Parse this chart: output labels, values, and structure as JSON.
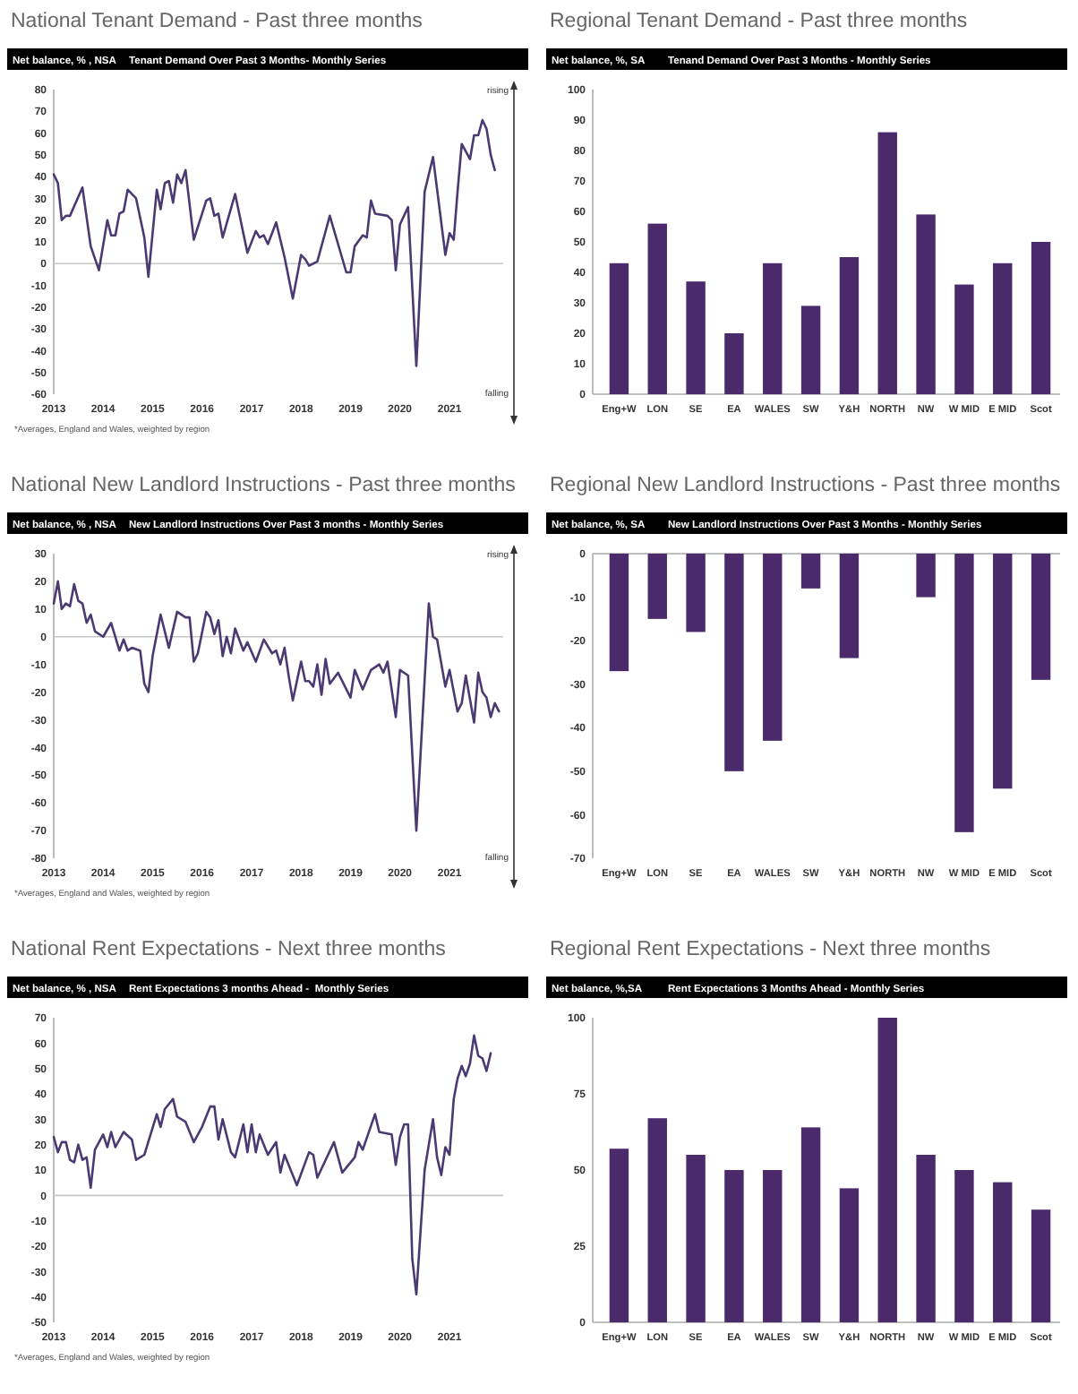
{
  "chart_data": [
    {
      "type": "line",
      "title": "National Tenant Demand - Past three months",
      "subtitle": "Tenant Demand Over Past 3 Months- Monthly Series",
      "ylabel": "Net balance, % , NSA",
      "color": "#4b3a72",
      "x": [
        "2013-01",
        "2013-02",
        "2013-03",
        "2013-04",
        "2013-05",
        "2013-08",
        "2013-10",
        "2013-12",
        "2014-02",
        "2014-03",
        "2014-04",
        "2014-05",
        "2014-06",
        "2014-07",
        "2014-09",
        "2014-11",
        "2014-12",
        "2015-02",
        "2015-03",
        "2015-04",
        "2015-05",
        "2015-06",
        "2015-07",
        "2015-08",
        "2015-09",
        "2015-11",
        "2016-02",
        "2016-03",
        "2016-04",
        "2016-05",
        "2016-06",
        "2016-09",
        "2016-12",
        "2017-02",
        "2017-03",
        "2017-04",
        "2017-05",
        "2017-06",
        "2017-07",
        "2017-09",
        "2017-11",
        "2018-01",
        "2018-02",
        "2018-03",
        "2018-05",
        "2018-08",
        "2018-12",
        "2019-01",
        "2019-02",
        "2019-04",
        "2019-05",
        "2019-06",
        "2019-07",
        "2019-10",
        "2019-11",
        "2019-12",
        "2020-01",
        "2020-03",
        "2020-05",
        "2020-07",
        "2020-09",
        "2020-12",
        "2021-01",
        "2021-02",
        "2021-03",
        "2021-04",
        "2021-06",
        "2021-07",
        "2021-08",
        "2021-09",
        "2021-10",
        "2021-11",
        "2021-12"
      ],
      "values": [
        41,
        37,
        20,
        22,
        22,
        35,
        8,
        -3,
        20,
        13,
        13,
        23,
        24,
        34,
        30,
        12,
        -6,
        34,
        25,
        37,
        38,
        28,
        41,
        37,
        43,
        11,
        29,
        30,
        22,
        23,
        12,
        32,
        5,
        15,
        12,
        13,
        9,
        14,
        19,
        3,
        -16,
        4,
        2,
        -1,
        1,
        22,
        -4,
        -4,
        8,
        13,
        12,
        29,
        23,
        22,
        20,
        -3,
        18,
        26,
        -47,
        33,
        49,
        4,
        14,
        11,
        33,
        55,
        48,
        59,
        59,
        66,
        62,
        50,
        43
      ],
      "xlim": [
        "2013-01",
        "2022-02"
      ],
      "xticks": [
        "2013",
        "2014",
        "2015",
        "2016",
        "2017",
        "2018",
        "2019",
        "2020",
        "2021"
      ],
      "ylim": [
        -60,
        80
      ],
      "yticks": [
        -60,
        -50,
        -40,
        -30,
        -20,
        -10,
        0,
        10,
        20,
        30,
        40,
        50,
        60,
        70,
        80
      ],
      "ref_lines": [
        {
          "axis": "y",
          "value": 0,
          "color": "#c8c8c8"
        }
      ],
      "annotations": [
        "*Averages, England and Wales, weighted by region",
        "rising",
        "falling"
      ]
    },
    {
      "type": "bar",
      "title": "Regional Tenant Demand - Past three months",
      "subtitle": "Tenand Demand Over Past 3 Months - Monthly Series",
      "ylabel": "Net balance, %, SA",
      "color": "#4a2a6a",
      "categories": [
        "Eng+W",
        "LON",
        "SE",
        "EA",
        "WALES",
        "SW",
        "Y&H",
        "NORTH",
        "NW",
        "W MID",
        "E MID",
        "Scot"
      ],
      "values": [
        43,
        56,
        37,
        20,
        43,
        29,
        45,
        86,
        59,
        36,
        43,
        50
      ],
      "ylim": [
        0,
        100
      ],
      "yticks": [
        0,
        10,
        20,
        30,
        40,
        50,
        60,
        70,
        80,
        90,
        100
      ]
    },
    {
      "type": "line",
      "title": "National New Landlord Instructions - Past three months",
      "subtitle": "New Landlord Instructions Over Past 3 months - Monthly Series",
      "ylabel": "Net balance, % , NSA",
      "color": "#4b3a72",
      "x": [
        "2013-01",
        "2013-02",
        "2013-03",
        "2013-04",
        "2013-05",
        "2013-06",
        "2013-07",
        "2013-08",
        "2013-09",
        "2013-10",
        "2013-11",
        "2014-01",
        "2014-03",
        "2014-05",
        "2014-06",
        "2014-07",
        "2014-08",
        "2014-10",
        "2014-11",
        "2014-12",
        "2015-01",
        "2015-03",
        "2015-05",
        "2015-07",
        "2015-09",
        "2015-10",
        "2015-11",
        "2015-12",
        "2016-02",
        "2016-03",
        "2016-04",
        "2016-05",
        "2016-06",
        "2016-07",
        "2016-08",
        "2016-09",
        "2016-11",
        "2016-12",
        "2017-02",
        "2017-04",
        "2017-06",
        "2017-07",
        "2017-08",
        "2017-09",
        "2017-10",
        "2017-11",
        "2018-01",
        "2018-02",
        "2018-03",
        "2018-04",
        "2018-05",
        "2018-06",
        "2018-07",
        "2018-08",
        "2018-10",
        "2019-01",
        "2019-02",
        "2019-04",
        "2019-06",
        "2019-08",
        "2019-09",
        "2019-10",
        "2019-12",
        "2020-01",
        "2020-03",
        "2020-05",
        "2020-08",
        "2020-09",
        "2020-10",
        "2020-12",
        "2021-01",
        "2021-03",
        "2021-04",
        "2021-05",
        "2021-07",
        "2021-08",
        "2021-09",
        "2021-10",
        "2021-11",
        "2021-12",
        "2022-01"
      ],
      "values": [
        12,
        20,
        10,
        12,
        11,
        19,
        13,
        12,
        5,
        8,
        2,
        0,
        5,
        -5,
        -1,
        -5,
        -4,
        -5,
        -17,
        -20,
        -7,
        8,
        -4,
        9,
        7,
        7,
        -9,
        -6,
        9,
        7,
        1,
        6,
        -7,
        0,
        -6,
        3,
        -5,
        -2,
        -9,
        -1,
        -6,
        -5,
        -10,
        -4,
        -14,
        -23,
        -9,
        -16,
        -16,
        -18,
        -10,
        -21,
        -8,
        -17,
        -13,
        -22,
        -12,
        -19,
        -12,
        -10,
        -13,
        -9,
        -29,
        -12,
        -14,
        -70,
        12,
        0,
        -1,
        -18,
        -12,
        -27,
        -24,
        -14,
        -31,
        -13,
        -20,
        -22,
        -29,
        -24,
        -27
      ],
      "xlim": [
        "2013-01",
        "2022-02"
      ],
      "xticks": [
        "2013",
        "2014",
        "2015",
        "2016",
        "2017",
        "2018",
        "2019",
        "2020",
        "2021"
      ],
      "ylim": [
        -80,
        30
      ],
      "yticks": [
        -80,
        -70,
        -60,
        -50,
        -40,
        -30,
        -20,
        -10,
        0,
        10,
        20,
        30
      ],
      "ref_lines": [
        {
          "axis": "y",
          "value": 0,
          "color": "#c8c8c8"
        }
      ],
      "annotations": [
        "*Averages, England and Wales, weighted by region",
        "rising",
        "falling"
      ]
    },
    {
      "type": "bar",
      "title": "Regional New Landlord Instructions - Past three months",
      "subtitle": "New Landlord Instructions Over Past 3 Months - Monthly Series",
      "ylabel": "Net balance, %, SA",
      "color": "#4a2a6a",
      "categories": [
        "Eng+W",
        "LON",
        "SE",
        "EA",
        "WALES",
        "SW",
        "Y&H",
        "NORTH",
        "NW",
        "W MID",
        "E MID",
        "Scot"
      ],
      "values": [
        -27,
        -15,
        -18,
        -50,
        -43,
        -8,
        -24,
        0,
        -10,
        -64,
        -54,
        -29
      ],
      "ylim": [
        -70,
        0
      ],
      "yticks": [
        -70,
        -60,
        -50,
        -40,
        -30,
        -20,
        -10,
        0
      ]
    },
    {
      "type": "line",
      "title": "National Rent Expectations - Next three months",
      "subtitle": "Rent Expectations 3 months Ahead -  Monthly Series",
      "ylabel": "Net balance, % , NSA",
      "color": "#4b3a72",
      "x": [
        "2013-01",
        "2013-02",
        "2013-03",
        "2013-04",
        "2013-05",
        "2013-06",
        "2013-07",
        "2013-08",
        "2013-09",
        "2013-10",
        "2013-11",
        "2014-01",
        "2014-02",
        "2014-03",
        "2014-04",
        "2014-06",
        "2014-08",
        "2014-09",
        "2014-11",
        "2015-02",
        "2015-03",
        "2015-04",
        "2015-06",
        "2015-07",
        "2015-09",
        "2015-11",
        "2016-01",
        "2016-03",
        "2016-04",
        "2016-05",
        "2016-06",
        "2016-08",
        "2016-09",
        "2016-11",
        "2016-12",
        "2017-01",
        "2017-02",
        "2017-03",
        "2017-05",
        "2017-07",
        "2017-08",
        "2017-09",
        "2017-12",
        "2018-03",
        "2018-04",
        "2018-05",
        "2018-09",
        "2018-11",
        "2019-02",
        "2019-03",
        "2019-04",
        "2019-07",
        "2019-08",
        "2019-11",
        "2019-12",
        "2020-01",
        "2020-02",
        "2020-03",
        "2020-04",
        "2020-05",
        "2020-07",
        "2020-09",
        "2020-10",
        "2020-11",
        "2020-12",
        "2021-01",
        "2021-02",
        "2021-03",
        "2021-04",
        "2021-05",
        "2021-06",
        "2021-07",
        "2021-08",
        "2021-09",
        "2021-10",
        "2021-11"
      ],
      "values": [
        23,
        17,
        21,
        21,
        14,
        13,
        20,
        14,
        15,
        3,
        18,
        24,
        19,
        25,
        19,
        25,
        22,
        14,
        16,
        32,
        27,
        34,
        38,
        31,
        29,
        21,
        27,
        35,
        35,
        22,
        30,
        17,
        15,
        28,
        17,
        28,
        17,
        24,
        16,
        21,
        9,
        16,
        4,
        17,
        16,
        7,
        21,
        9,
        15,
        21,
        18,
        32,
        25,
        24,
        12,
        23,
        28,
        28,
        -25,
        -39,
        10,
        30,
        15,
        8,
        19,
        16,
        38,
        46,
        51,
        47,
        52,
        63,
        55,
        54,
        49,
        56
      ],
      "xlim": [
        "2013-01",
        "2022-02"
      ],
      "xticks": [
        "2013",
        "2014",
        "2015",
        "2016",
        "2017",
        "2018",
        "2019",
        "2020",
        "2021"
      ],
      "ylim": [
        -50,
        70
      ],
      "yticks": [
        -50,
        -40,
        -30,
        -20,
        -10,
        0,
        10,
        20,
        30,
        40,
        50,
        60,
        70
      ],
      "ref_lines": [
        {
          "axis": "y",
          "value": 0,
          "color": "#c8c8c8"
        }
      ],
      "annotations": [
        "*Averages, England and Wales, weighted by region"
      ]
    },
    {
      "type": "bar",
      "title": "Regional Rent Expectations - Next three months",
      "subtitle": "Rent Expectations 3 Months Ahead - Monthly Series",
      "ylabel": "Net balance, %,SA",
      "color": "#4a2a6a",
      "categories": [
        "Eng+W",
        "LON",
        "SE",
        "EA",
        "WALES",
        "SW",
        "Y&H",
        "NORTH",
        "NW",
        "W MID",
        "E MID",
        "Scot"
      ],
      "values": [
        57,
        67,
        55,
        50,
        50,
        64,
        44,
        100,
        55,
        50,
        46,
        37
      ],
      "ylim": [
        0,
        100
      ],
      "yticks": [
        0,
        25,
        50,
        75,
        100
      ]
    }
  ]
}
